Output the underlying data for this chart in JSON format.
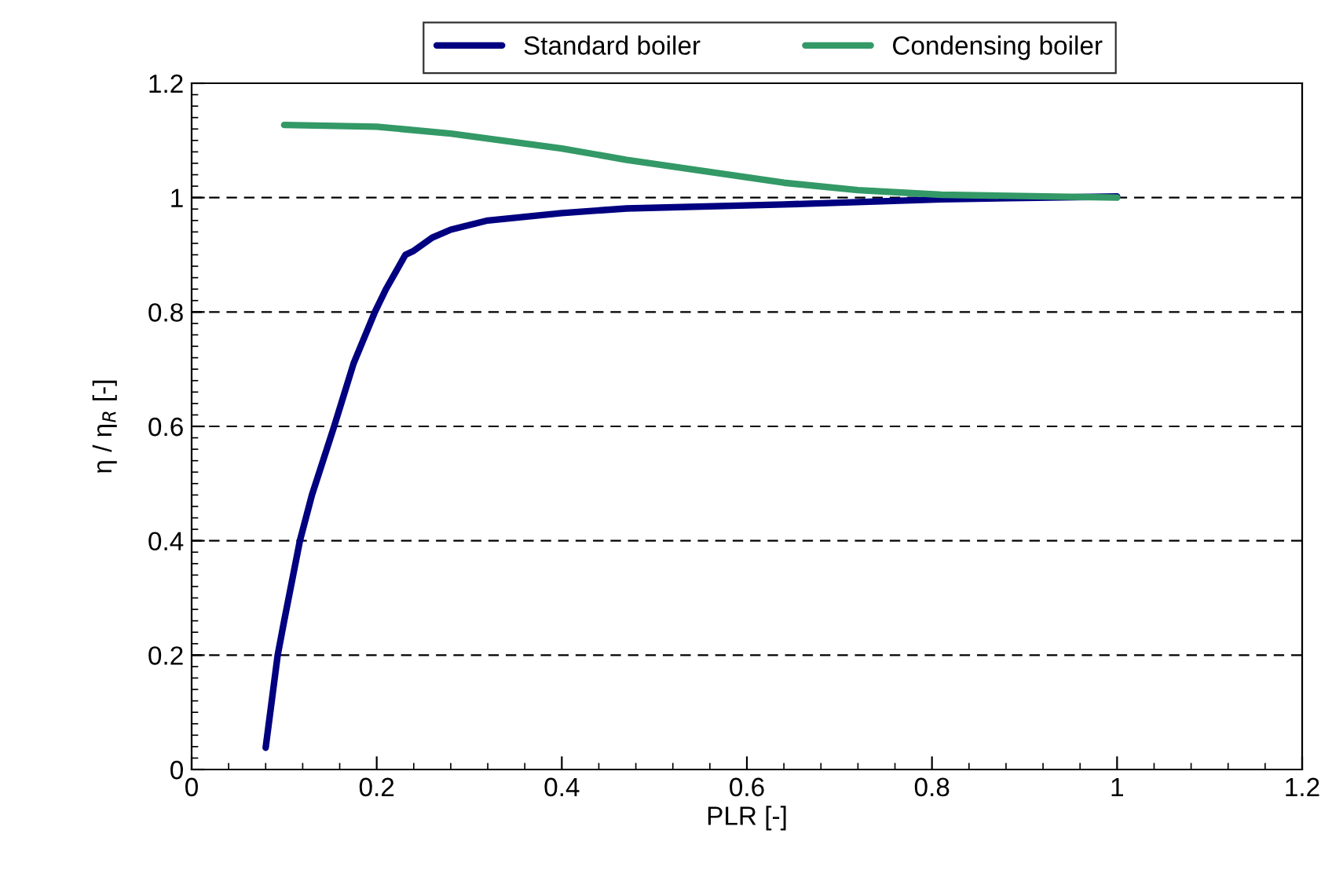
{
  "chart_data": {
    "type": "line",
    "xlabel": "PLR [-]",
    "ylabel": "η / η$_{R}$ [-]",
    "xlim": [
      0,
      1.2
    ],
    "xticks": [
      0,
      0.2,
      0.4,
      0.6,
      0.8,
      1,
      1.2
    ],
    "ylim": [
      0,
      1.2
    ],
    "yticks": [
      0,
      0.2,
      0.4,
      0.6,
      0.8,
      1,
      1.2
    ],
    "grid": "y",
    "legend": "top",
    "line_style": "solid",
    "marker": "none",
    "series": [
      {
        "name": "Standard boiler",
        "color": "#000080",
        "x": [
          0.08,
          0.093,
          0.1,
          0.117,
          0.13,
          0.154,
          0.175,
          0.198,
          0.21,
          0.231,
          0.24,
          0.26,
          0.28,
          0.32,
          0.4,
          0.47,
          0.64,
          0.81,
          1.0
        ],
        "values": [
          0.038,
          0.2,
          0.26,
          0.4,
          0.48,
          0.6,
          0.71,
          0.8,
          0.84,
          0.9,
          0.907,
          0.93,
          0.944,
          0.96,
          0.973,
          0.981,
          0.988,
          0.997,
          1.002
        ]
      },
      {
        "name": "Condensing boiler",
        "color": "#339966",
        "x": [
          0.1,
          0.2,
          0.28,
          0.4,
          0.47,
          0.64,
          0.72,
          0.81,
          1.0
        ],
        "values": [
          1.127,
          1.124,
          1.112,
          1.086,
          1.066,
          1.026,
          1.013,
          1.005,
          1.0
        ]
      }
    ]
  }
}
